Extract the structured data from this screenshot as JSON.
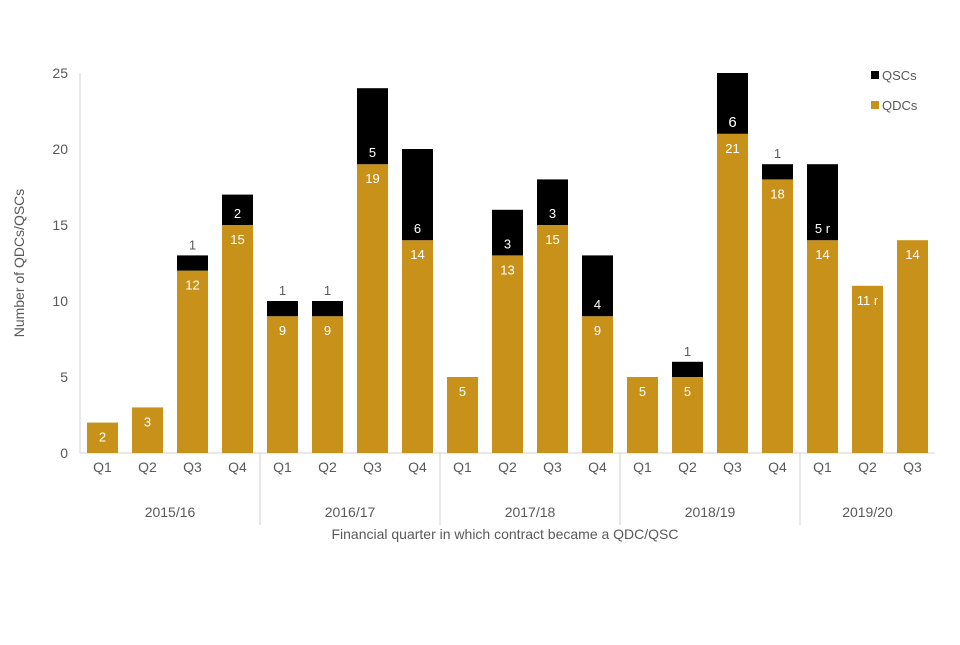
{
  "chart_data": {
    "type": "bar",
    "stacked": true,
    "title": "",
    "ylabel": "Number of QDCs/QSCs",
    "xlabel": "Financial quarter in which contract became a QDC/QSC",
    "ylim": [
      0,
      25
    ],
    "yticks": [
      "0",
      "5",
      "10",
      "15",
      "20",
      "25"
    ],
    "grid": false,
    "legend_position": "top-right",
    "groups": [
      {
        "label": "2015/16",
        "quarters": [
          "Q1",
          "Q2",
          "Q3",
          "Q4"
        ]
      },
      {
        "label": "2016/17",
        "quarters": [
          "Q1",
          "Q2",
          "Q3",
          "Q4"
        ]
      },
      {
        "label": "2017/18",
        "quarters": [
          "Q1",
          "Q2",
          "Q3",
          "Q4"
        ]
      },
      {
        "label": "2018/19",
        "quarters": [
          "Q1",
          "Q2",
          "Q3",
          "Q4"
        ]
      },
      {
        "label": "2019/20",
        "quarters": [
          "Q1",
          "Q2",
          "Q3"
        ]
      }
    ],
    "series": [
      {
        "name": "QDCs",
        "color": "#C8921A",
        "values": [
          2,
          3,
          12,
          15,
          9,
          9,
          19,
          14,
          5,
          13,
          15,
          9,
          5,
          5,
          21,
          18,
          14,
          11,
          14
        ],
        "labels": [
          "2",
          "3",
          "12",
          "15",
          "9",
          "9",
          "19",
          "14",
          "5",
          "13",
          "15",
          "9",
          "5",
          "5",
          "21",
          "18",
          "14",
          "11 r",
          "14"
        ]
      },
      {
        "name": "QSCs",
        "color": "#000000",
        "values": [
          0,
          0,
          1,
          2,
          1,
          1,
          5,
          6,
          0,
          3,
          3,
          4,
          0,
          1,
          6,
          1,
          5,
          0,
          0
        ],
        "labels": [
          "",
          "",
          "1",
          "2",
          "1",
          "1",
          "5",
          "6",
          "",
          "3",
          "3",
          "4",
          "",
          "1",
          "6",
          "1",
          "5 r",
          "",
          ""
        ]
      }
    ]
  }
}
